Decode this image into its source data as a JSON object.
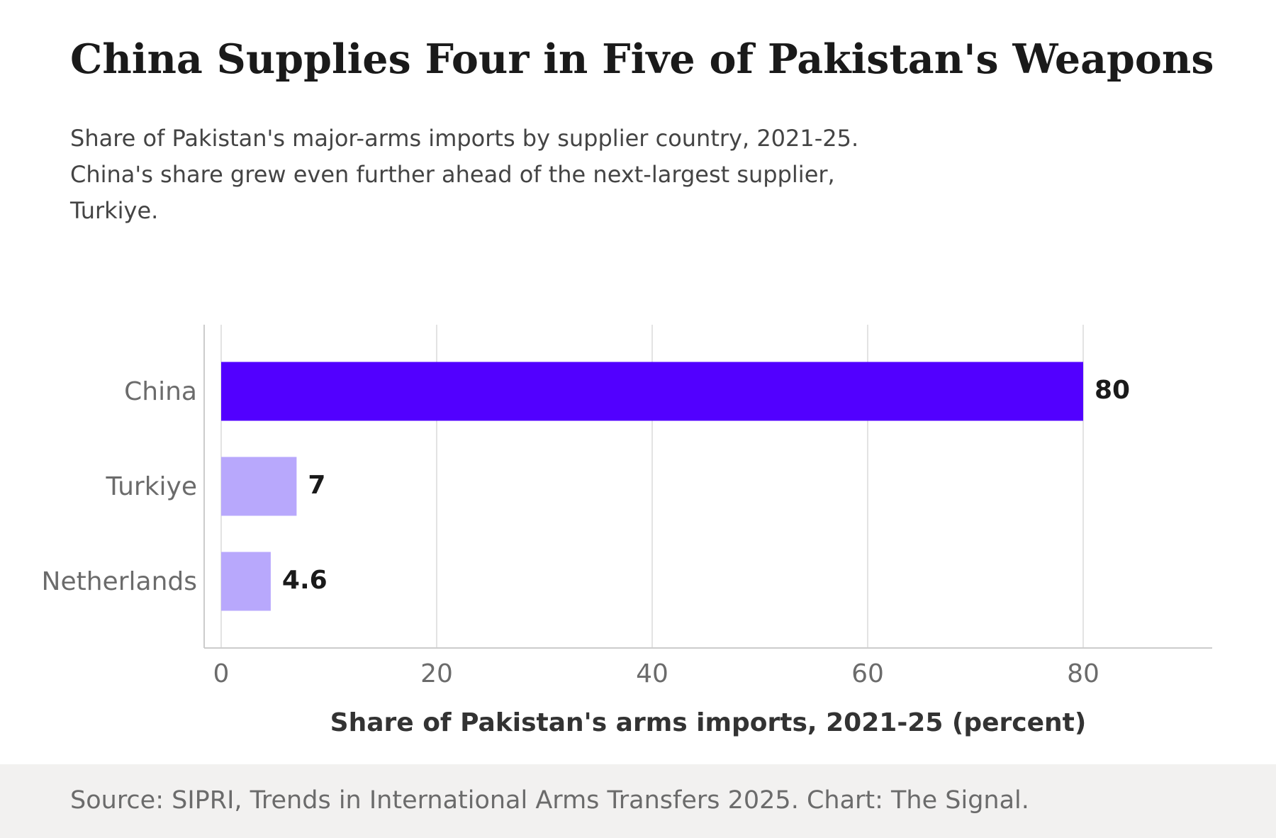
{
  "title": "China Supplies Four in Five of Pakistan's Weapons",
  "subtitle_lines": [
    "Share of Pakistan's major-arms imports by supplier country, 2021-25.",
    "China's share grew even further ahead of the next-largest supplier,",
    "Turkiye."
  ],
  "source": "Source: SIPRI, Trends in International Arms Transfers 2025. Chart: The Signal.",
  "colors": {
    "highlight": "#5200ff",
    "muted": "#b8a8fc",
    "grid": "#e3e3e3",
    "axis": "#cccccc",
    "tick_text": "#6b6b6b",
    "value_text": "#1a1a1a",
    "footer_bg": "#f2f1f0"
  },
  "chart_data": {
    "type": "bar",
    "orientation": "horizontal",
    "categories": [
      "China",
      "Turkiye",
      "Netherlands"
    ],
    "values": [
      80,
      7,
      4.6
    ],
    "value_labels": [
      "80",
      "7",
      "4.6"
    ],
    "highlight": [
      true,
      false,
      false
    ],
    "xlabel": "Share of Pakistan's arms imports, 2021-25 (percent)",
    "ylabel": "",
    "xlim": [
      0,
      92
    ],
    "xticks": [
      0,
      20,
      40,
      60,
      80
    ],
    "grid": true
  }
}
